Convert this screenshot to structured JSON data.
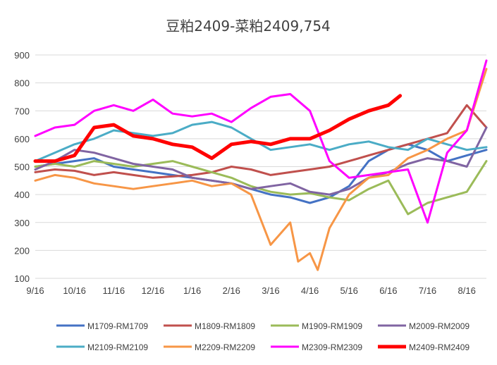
{
  "chart_data": {
    "type": "line",
    "title": "豆粕2409-菜粕2409,754",
    "xlabel": "",
    "ylabel": "",
    "ylim": [
      100,
      900
    ],
    "yticks": [
      100,
      200,
      300,
      400,
      500,
      600,
      700,
      800,
      900
    ],
    "xlim": [
      0,
      11.5
    ],
    "xticks": [
      {
        "x": 0,
        "label": "9/16"
      },
      {
        "x": 1,
        "label": "10/16"
      },
      {
        "x": 2,
        "label": "11/16"
      },
      {
        "x": 3,
        "label": "12/16"
      },
      {
        "x": 4,
        "label": "1/16"
      },
      {
        "x": 5,
        "label": "2/16"
      },
      {
        "x": 6,
        "label": "3/16"
      },
      {
        "x": 7,
        "label": "4/16"
      },
      {
        "x": 8,
        "label": "5/16"
      },
      {
        "x": 9,
        "label": "6/16"
      },
      {
        "x": 10,
        "label": "7/16"
      },
      {
        "x": 11,
        "label": "8/16"
      }
    ],
    "grid": true,
    "legend_position": "bottom",
    "series": [
      {
        "name": "M1709-RM1709",
        "color": "#4472C4",
        "width": 3,
        "x": [
          0,
          0.5,
          1,
          1.5,
          2,
          2.5,
          3,
          3.5,
          4,
          4.5,
          5,
          5.5,
          6,
          6.5,
          7,
          7.5,
          8,
          8.5,
          9,
          9.5,
          10,
          10.5,
          11,
          11.5
        ],
        "y": [
          500,
          510,
          520,
          530,
          500,
          490,
          480,
          470,
          460,
          450,
          440,
          420,
          400,
          390,
          370,
          390,
          430,
          520,
          560,
          580,
          560,
          520,
          540,
          560
        ]
      },
      {
        "name": "M1809-RM1809",
        "color": "#C0504D",
        "width": 3,
        "x": [
          0,
          0.5,
          1,
          1.5,
          2,
          2.5,
          3,
          3.5,
          4,
          4.5,
          5,
          5.5,
          6,
          6.5,
          7,
          7.5,
          8,
          8.5,
          9,
          9.5,
          10,
          10.5,
          11,
          11.5
        ],
        "y": [
          480,
          490,
          485,
          470,
          480,
          470,
          460,
          465,
          470,
          480,
          500,
          490,
          470,
          480,
          490,
          500,
          520,
          540,
          560,
          580,
          600,
          620,
          720,
          640
        ]
      },
      {
        "name": "M1909-RM1909",
        "color": "#9BBB59",
        "width": 3,
        "x": [
          0,
          0.5,
          1,
          1.5,
          2,
          2.5,
          3,
          3.5,
          4,
          4.5,
          5,
          5.5,
          6,
          6.5,
          7,
          7.5,
          8,
          8.5,
          9,
          9.5,
          10,
          10.5,
          11,
          11.5
        ],
        "y": [
          500,
          510,
          500,
          520,
          510,
          500,
          510,
          520,
          500,
          480,
          460,
          430,
          410,
          400,
          405,
          390,
          380,
          420,
          450,
          330,
          370,
          390,
          410,
          520
        ]
      },
      {
        "name": "M2009-RM2009",
        "color": "#8064A2",
        "width": 3,
        "x": [
          0,
          0.5,
          1,
          1.5,
          2,
          2.5,
          3,
          3.5,
          4,
          4.5,
          5,
          5.5,
          6,
          6.5,
          7,
          7.5,
          8,
          8.5,
          9,
          9.5,
          10,
          10.5,
          11,
          11.5
        ],
        "y": [
          490,
          520,
          560,
          550,
          530,
          510,
          500,
          490,
          460,
          450,
          440,
          420,
          430,
          440,
          410,
          400,
          420,
          460,
          480,
          510,
          530,
          520,
          500,
          640
        ]
      },
      {
        "name": "M2109-RM2109",
        "color": "#4BACC6",
        "width": 3,
        "x": [
          0,
          0.5,
          1,
          1.5,
          2,
          2.5,
          3,
          3.5,
          4,
          4.5,
          5,
          5.5,
          6,
          6.5,
          7,
          7.5,
          8,
          8.5,
          9,
          9.5,
          10,
          10.5,
          11,
          11.5
        ],
        "y": [
          520,
          550,
          580,
          600,
          630,
          620,
          610,
          620,
          650,
          660,
          640,
          600,
          560,
          570,
          580,
          560,
          580,
          590,
          570,
          560,
          600,
          580,
          560,
          570
        ]
      },
      {
        "name": "M2209-RM2209",
        "color": "#F79646",
        "width": 3,
        "x": [
          0,
          0.5,
          1,
          1.5,
          2,
          2.5,
          3,
          3.5,
          4,
          4.5,
          5,
          5.5,
          6,
          6.5,
          6.7,
          7,
          7.2,
          7.5,
          8,
          8.5,
          9,
          9.5,
          10,
          10.5,
          11,
          11.5
        ],
        "y": [
          450,
          470,
          460,
          440,
          430,
          420,
          430,
          440,
          450,
          430,
          440,
          400,
          220,
          300,
          160,
          190,
          130,
          280,
          400,
          460,
          470,
          530,
          560,
          600,
          630,
          850
        ]
      },
      {
        "name": "M2309-RM2309",
        "color": "#FF00FF",
        "width": 3,
        "x": [
          0,
          0.5,
          1,
          1.5,
          2,
          2.5,
          3,
          3.5,
          4,
          4.5,
          5,
          5.5,
          6,
          6.5,
          7,
          7.5,
          8,
          8.5,
          9,
          9.5,
          10,
          10.5,
          11,
          11.5
        ],
        "y": [
          610,
          640,
          650,
          700,
          720,
          700,
          740,
          690,
          680,
          690,
          660,
          710,
          750,
          760,
          700,
          520,
          460,
          470,
          480,
          490,
          300,
          550,
          630,
          880
        ]
      },
      {
        "name": "M2409-RM2409",
        "color": "#FF0000",
        "width": 5,
        "x": [
          0,
          0.5,
          1,
          1.5,
          2,
          2.5,
          3,
          3.5,
          4,
          4.5,
          5,
          5.5,
          6,
          6.5,
          7,
          7.5,
          8,
          8.5,
          9,
          9.3
        ],
        "y": [
          520,
          520,
          540,
          640,
          650,
          610,
          600,
          580,
          570,
          530,
          580,
          590,
          580,
          600,
          600,
          630,
          670,
          700,
          720,
          754
        ]
      }
    ]
  }
}
